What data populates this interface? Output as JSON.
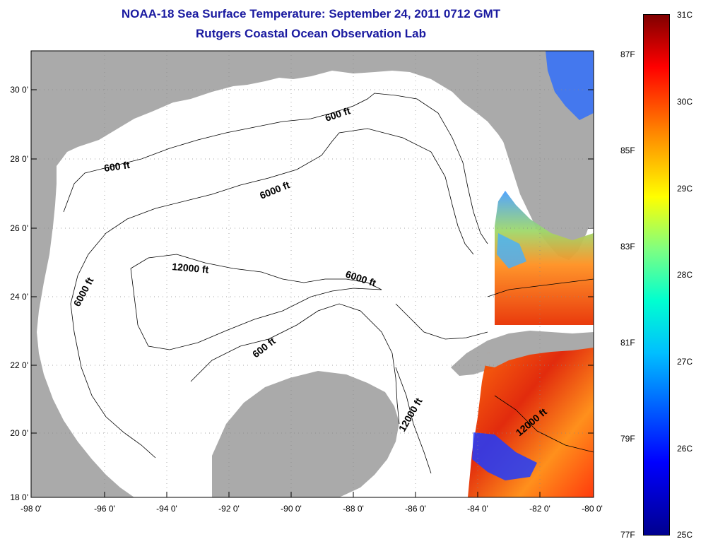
{
  "header": {
    "title": "NOAA-18 Sea Surface Temperature:  September 24, 2011 0712 GMT",
    "subtitle": "Rutgers Coastal Ocean Observation Lab"
  },
  "axes": {
    "lat_ticks": [
      "30 0'",
      "28 0'",
      "26 0'",
      "24 0'",
      "22 0'",
      "20 0'",
      "18 0'"
    ],
    "lon_ticks": [
      "-98 0'",
      "-96 0'",
      "-94 0'",
      "-92 0'",
      "-90 0'",
      "-88 0'",
      "-86 0'",
      "-84 0'",
      "-82 0'",
      "-80 0'"
    ]
  },
  "contour_labels": {
    "c1": "600 ft",
    "c2": "600 ft",
    "c3": "6000 ft",
    "c4": "6000 ft",
    "c5": "6000 ft",
    "c6": "12000 ft",
    "c7": "600 ft",
    "c8": "12000 ft",
    "c9": "12000 ft"
  },
  "colorbar": {
    "celsius": [
      "31C",
      "30C",
      "29C",
      "28C",
      "27C",
      "26C",
      "25C"
    ],
    "fahrenheit": [
      "87F",
      "85F",
      "83F",
      "81F",
      "79F",
      "77F"
    ]
  },
  "colors": {
    "land": "#aaaaaa",
    "water": "#ffffff",
    "title": "#1a1aa0"
  }
}
